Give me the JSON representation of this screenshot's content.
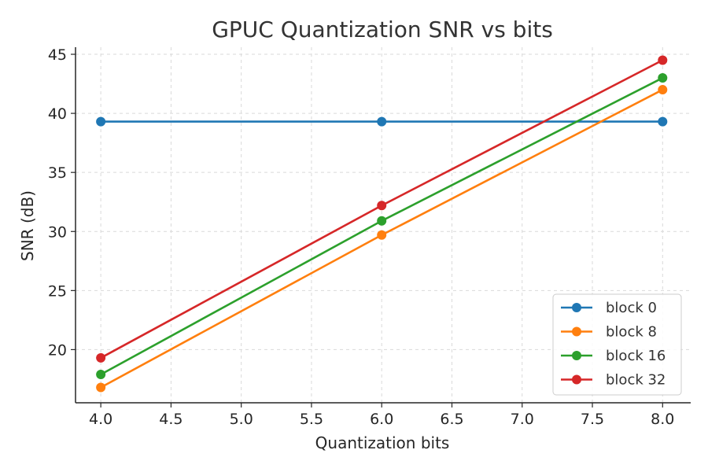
{
  "chart_data": {
    "type": "line",
    "title": "GPUC Quantization SNR vs bits",
    "xlabel": "Quantization bits",
    "ylabel": "SNR (dB)",
    "x": [
      4,
      6,
      8
    ],
    "xlim": [
      3.82,
      8.2
    ],
    "ylim": [
      15.5,
      45.6
    ],
    "xticks": [
      4.0,
      4.5,
      5.0,
      5.5,
      6.0,
      6.5,
      7.0,
      7.5,
      8.0
    ],
    "xtick_labels": [
      "4.0",
      "4.5",
      "5.0",
      "5.5",
      "6.0",
      "6.5",
      "7.0",
      "7.5",
      "8.0"
    ],
    "yticks": [
      20,
      25,
      30,
      35,
      40,
      45
    ],
    "ytick_labels": [
      "20",
      "25",
      "30",
      "35",
      "40",
      "45"
    ],
    "grid": true,
    "legend_position": "bottom-right",
    "series": [
      {
        "name": "block 0",
        "color": "#1f77b4",
        "values": [
          39.3,
          39.3,
          39.3
        ]
      },
      {
        "name": "block 8",
        "color": "#ff7f0e",
        "values": [
          16.8,
          29.7,
          42.0
        ]
      },
      {
        "name": "block 16",
        "color": "#2ca02c",
        "values": [
          17.9,
          30.9,
          43.0
        ]
      },
      {
        "name": "block 32",
        "color": "#d62728",
        "values": [
          19.3,
          32.2,
          44.5
        ]
      }
    ]
  }
}
